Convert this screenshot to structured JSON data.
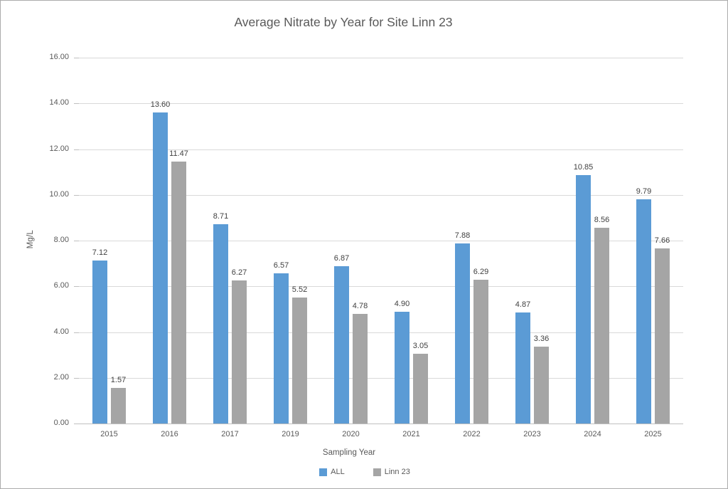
{
  "window": {
    "background": "#ffffff",
    "border_color": "#ababab"
  },
  "chart_data": {
    "type": "bar",
    "title": "Average Nitrate by Year for Site Linn 23",
    "xlabel": "Sampling Year",
    "ylabel": "Mg/L",
    "ylim": [
      0,
      16
    ],
    "ytick_step": 2,
    "ytick_labels": [
      "0.00",
      "2.00",
      "4.00",
      "6.00",
      "8.00",
      "10.00",
      "12.00",
      "14.00",
      "16.00"
    ],
    "grid": true,
    "legend_position": "bottom",
    "categories": [
      "2015",
      "2016",
      "2017",
      "2019",
      "2020",
      "2021",
      "2022",
      "2023",
      "2024",
      "2025"
    ],
    "series": [
      {
        "name": "ALL",
        "color": "#5B9BD5",
        "values": [
          7.12,
          13.6,
          8.71,
          6.57,
          6.87,
          4.9,
          7.88,
          4.87,
          10.85,
          9.79
        ],
        "labels": [
          "7.12",
          "13.60",
          "8.71",
          "6.57",
          "6.87",
          "4.90",
          "7.88",
          "4.87",
          "10.85",
          "9.79"
        ]
      },
      {
        "name": "Linn 23",
        "color": "#A5A5A5",
        "values": [
          1.57,
          11.47,
          6.27,
          5.52,
          4.78,
          3.05,
          6.29,
          3.36,
          8.56,
          7.66
        ],
        "labels": [
          "1.57",
          "11.47",
          "6.27",
          "5.52",
          "4.78",
          "3.05",
          "6.29",
          "3.36",
          "8.56",
          "7.66"
        ]
      }
    ],
    "colors": {
      "gridline": "#d9d9d9",
      "axis_line": "#bfbfbf",
      "axis_text": "#595959",
      "data_label_text": "#404040"
    }
  }
}
